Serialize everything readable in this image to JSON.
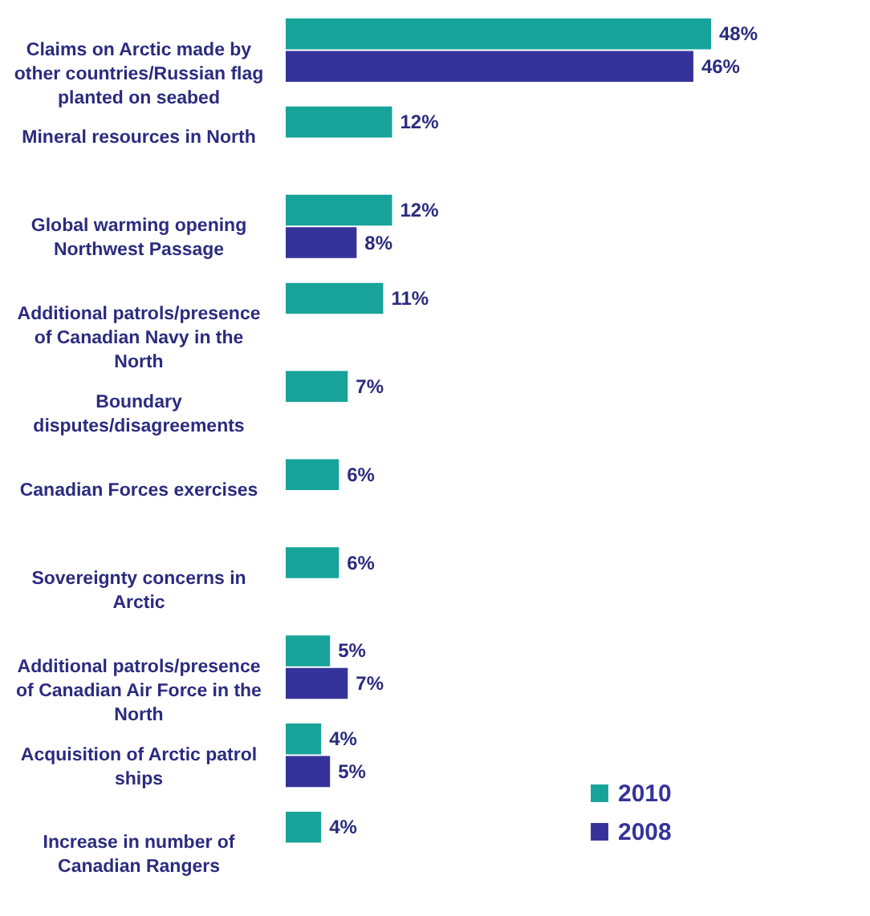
{
  "chart_data": {
    "type": "bar",
    "orientation": "horizontal",
    "legend": "bottom right",
    "categories": [
      "Claims on Arctic made by other countries/Russian flag planted on seabed",
      "Mineral resources in North",
      "Global warming opening Northwest Passage",
      "Additional patrols/presence of Canadian Navy in the North",
      "Boundary disputes/disagreements",
      "Canadian Forces exercises",
      "Sovereignty concerns in Arctic",
      "Additional patrols/presence of Canadian Air Force in the North",
      "Acquisition of Arctic patrol ships",
      "Increase in number of Canadian Rangers"
    ],
    "series": [
      {
        "name": "2010",
        "color": "#17a39a",
        "values": [
          48,
          12,
          12,
          11,
          7,
          6,
          6,
          5,
          4,
          4
        ],
        "value_labels": [
          "48%",
          "12%",
          "12%",
          "11%",
          "7%",
          "6%",
          "6%",
          "5%",
          "4%",
          "4%"
        ]
      },
      {
        "name": "2008",
        "color": "#35339a",
        "values": [
          46,
          null,
          8,
          null,
          null,
          null,
          null,
          7,
          5,
          null
        ],
        "value_labels": [
          "46%",
          null,
          "8%",
          null,
          null,
          null,
          null,
          "7%",
          "5%",
          null
        ]
      }
    ]
  }
}
